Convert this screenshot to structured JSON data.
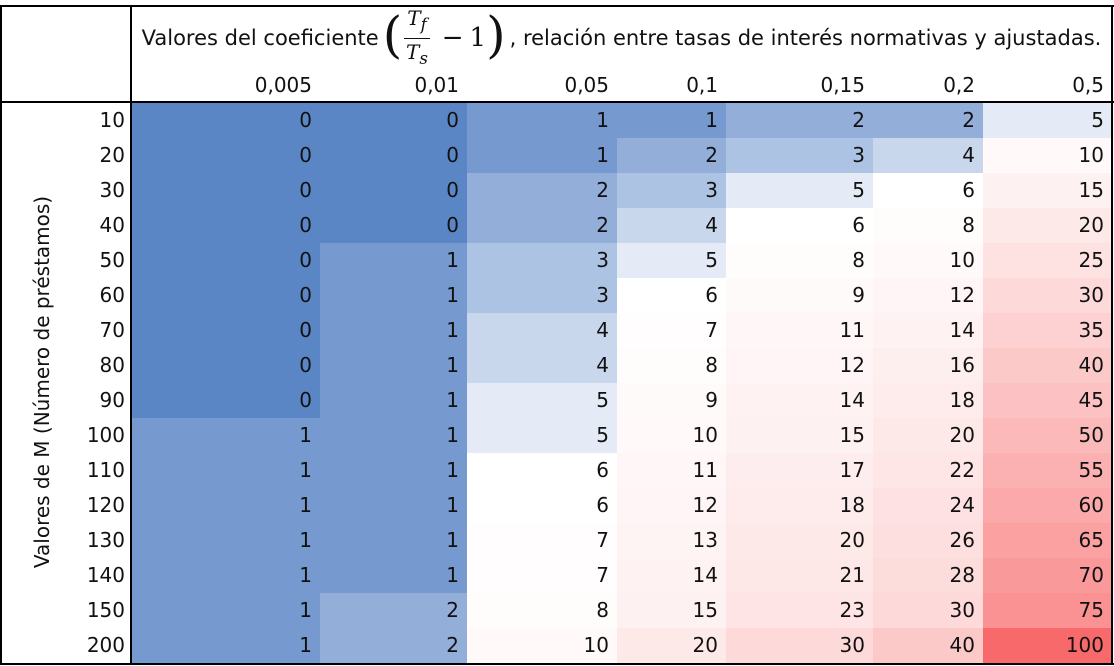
{
  "title": {
    "prefix": "Valores del coeficiente",
    "numerator": "T",
    "numerator_sub": "f",
    "denominator": "T",
    "denominator_sub": "s",
    "minus": "−",
    "one": "1",
    "suffix": ", relación entre tasas de interés normativas y ajustadas."
  },
  "ylabel": "Valores de M (Número de préstamos)",
  "colors": {
    "low": "#5b86c6",
    "mid": "#ffffff",
    "high": "#f8696b"
  },
  "chart_data": {
    "type": "heatmap",
    "columns": [
      "0,005",
      "0,01",
      "0,05",
      "0,1",
      "0,15",
      "0,2",
      "0,5"
    ],
    "rows": [
      "10",
      "20",
      "30",
      "40",
      "50",
      "60",
      "70",
      "80",
      "90",
      "100",
      "110",
      "120",
      "130",
      "140",
      "150",
      "200"
    ],
    "values": [
      [
        0,
        0,
        1,
        1,
        2,
        2,
        5
      ],
      [
        0,
        0,
        1,
        2,
        3,
        4,
        10
      ],
      [
        0,
        0,
        2,
        3,
        5,
        6,
        15
      ],
      [
        0,
        0,
        2,
        4,
        6,
        8,
        20
      ],
      [
        0,
        1,
        3,
        5,
        8,
        10,
        25
      ],
      [
        0,
        1,
        3,
        6,
        9,
        12,
        30
      ],
      [
        0,
        1,
        4,
        7,
        11,
        14,
        35
      ],
      [
        0,
        1,
        4,
        8,
        12,
        16,
        40
      ],
      [
        0,
        1,
        5,
        9,
        14,
        18,
        45
      ],
      [
        1,
        1,
        5,
        10,
        15,
        20,
        50
      ],
      [
        1,
        1,
        6,
        11,
        17,
        22,
        55
      ],
      [
        1,
        1,
        6,
        12,
        18,
        24,
        60
      ],
      [
        1,
        1,
        7,
        13,
        20,
        26,
        65
      ],
      [
        1,
        1,
        7,
        14,
        21,
        28,
        70
      ],
      [
        1,
        2,
        8,
        15,
        23,
        30,
        75
      ],
      [
        1,
        2,
        10,
        20,
        30,
        40,
        100
      ]
    ],
    "color_scale": [
      "low",
      "mid",
      "high"
    ]
  }
}
